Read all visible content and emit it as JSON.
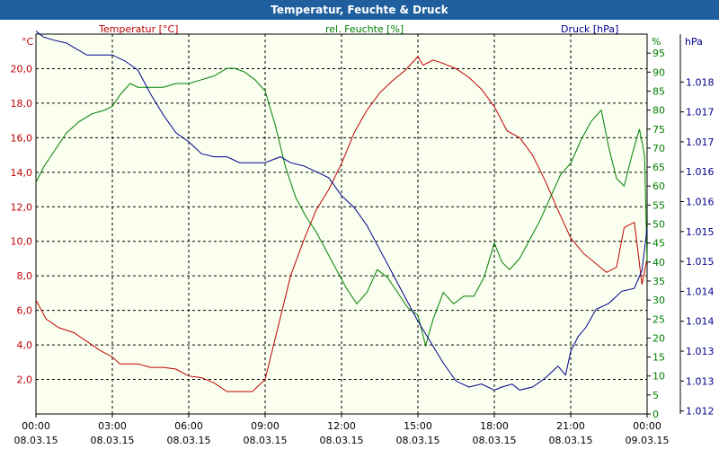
{
  "title": "Temperatur, Feuchte & Druck",
  "colors": {
    "temperature": "#c00000",
    "humidity": "#008000",
    "pressure": "#00008b",
    "grid": "#000000",
    "background": "#fafff0"
  },
  "chart_data": {
    "type": "line",
    "title": "Temperatur, Feuchte & Druck",
    "x_ticks": [
      {
        "time": "00:00",
        "date": "08.03.15"
      },
      {
        "time": "03:00",
        "date": "08.03.15"
      },
      {
        "time": "06:00",
        "date": "08.03.15"
      },
      {
        "time": "09:00",
        "date": "08.03.15"
      },
      {
        "time": "12:00",
        "date": "08.03.15"
      },
      {
        "time": "15:00",
        "date": "08.03.15"
      },
      {
        "time": "18:00",
        "date": "08.03.15"
      },
      {
        "time": "21:00",
        "date": "08.03.15"
      },
      {
        "time": "00:00",
        "date": "09.03.15"
      }
    ],
    "xlim_hours": [
      0,
      24
    ],
    "axes": {
      "temperature": {
        "label": "Temperatur [°C]",
        "unit": "°C",
        "ylim": [
          0,
          22
        ],
        "ticks": [
          "2,0",
          "4,0",
          "6,0",
          "8,0",
          "10,0",
          "12,0",
          "14,0",
          "16,0",
          "18,0",
          "20,0"
        ]
      },
      "humidity": {
        "label": "rel. Feuchte [%]",
        "unit": "%",
        "ylim": [
          0,
          100
        ],
        "ticks": [
          "0",
          "5",
          "10",
          "15",
          "20",
          "25",
          "30",
          "35",
          "40",
          "45",
          "50",
          "55",
          "60",
          "65",
          "70",
          "75",
          "80",
          "85",
          "90",
          "95"
        ]
      },
      "pressure": {
        "label": "Druck [hPa]",
        "unit": "hPa",
        "ylim": [
          1011.95,
          1018.3
        ],
        "ticks": [
          "1.012",
          "1.013",
          "1.013",
          "1.014",
          "1.014",
          "1.015",
          "1.015",
          "1.016",
          "1.016",
          "1.017",
          "1.017",
          "1.018"
        ],
        "tick_values": [
          1012.0,
          1012.5,
          1013.0,
          1013.5,
          1014.0,
          1014.5,
          1015.0,
          1015.5,
          1016.0,
          1016.5,
          1017.0,
          1017.5
        ]
      }
    },
    "series": [
      {
        "name": "Temperatur [°C]",
        "axis": "temperature",
        "x": [
          0,
          0.4,
          0.9,
          1.5,
          2,
          2.5,
          3,
          3.3,
          3.6,
          4,
          4.5,
          5,
          5.5,
          6,
          6.5,
          7,
          7.5,
          8,
          8.5,
          9,
          9.5,
          10,
          10.5,
          11,
          11.5,
          12,
          12.5,
          13,
          13.5,
          14,
          14.5,
          15,
          15.2,
          15.6,
          16,
          16.5,
          17,
          17.5,
          18,
          18.5,
          19,
          19.5,
          20,
          20.5,
          21,
          21.5,
          22,
          22.4,
          22.8,
          23.1,
          23.5,
          23.8,
          24
        ],
        "y": [
          6.6,
          5.5,
          5.0,
          4.7,
          4.2,
          3.7,
          3.3,
          2.9,
          2.9,
          2.9,
          2.7,
          2.7,
          2.6,
          2.2,
          2.1,
          1.8,
          1.3,
          1.3,
          1.3,
          2.0,
          5.0,
          8.0,
          10.0,
          11.8,
          13.0,
          14.5,
          16.3,
          17.6,
          18.6,
          19.3,
          19.9,
          20.7,
          20.2,
          20.5,
          20.3,
          20.0,
          19.5,
          18.8,
          17.8,
          16.4,
          16.0,
          15.0,
          13.5,
          11.8,
          10.2,
          9.3,
          8.7,
          8.2,
          8.5,
          10.8,
          11.1,
          7.5,
          9.0
        ]
      },
      {
        "name": "rel. Feuchte [%]",
        "axis": "humidity",
        "x": [
          0,
          0.3,
          0.7,
          1.2,
          1.7,
          2.2,
          2.7,
          3.0,
          3.3,
          3.7,
          4.0,
          4.5,
          5.0,
          5.5,
          6.0,
          6.5,
          7.0,
          7.5,
          7.8,
          8.2,
          8.6,
          9.0,
          9.4,
          9.8,
          10.2,
          10.6,
          11.0,
          11.4,
          11.8,
          12.2,
          12.6,
          13.0,
          13.4,
          13.8,
          14.2,
          14.6,
          15.0,
          15.3,
          15.6,
          16.0,
          16.4,
          16.8,
          17.2,
          17.6,
          18.0,
          18.3,
          18.6,
          19.0,
          19.4,
          19.8,
          20.2,
          20.6,
          21.0,
          21.4,
          21.8,
          22.2,
          22.5,
          22.8,
          23.1,
          23.4,
          23.7,
          23.9,
          24.0
        ],
        "y": [
          61,
          65,
          69,
          74,
          77,
          79,
          80,
          81,
          84,
          87,
          86,
          86,
          86,
          87,
          87,
          88,
          89,
          91,
          91,
          90,
          88,
          85,
          76,
          65,
          57,
          52,
          48,
          43,
          38,
          33,
          29,
          32,
          38,
          36,
          32,
          28,
          26,
          18,
          25,
          32,
          29,
          31,
          31,
          36,
          45,
          40,
          38,
          41,
          46,
          51,
          57,
          63,
          66,
          72,
          77,
          80,
          70,
          62,
          60,
          68,
          75,
          68,
          40
        ]
      },
      {
        "name": "Druck [hPa]",
        "axis": "pressure",
        "x": [
          0,
          0.3,
          0.7,
          1.2,
          1.6,
          2.0,
          2.5,
          3.0,
          3.5,
          4.0,
          4.5,
          5.0,
          5.5,
          6.0,
          6.5,
          7.0,
          7.5,
          8.0,
          8.5,
          9.0,
          9.3,
          9.6,
          10.0,
          10.5,
          11.0,
          11.5,
          12.0,
          12.5,
          13.0,
          13.5,
          14.0,
          14.5,
          15.0,
          15.5,
          16.0,
          16.5,
          17.0,
          17.5,
          18.0,
          18.3,
          18.7,
          19.0,
          19.5,
          20.0,
          20.5,
          20.8,
          21.0,
          21.3,
          21.6,
          22.0,
          22.5,
          23.0,
          23.5,
          23.8,
          24.0
        ],
        "y": [
          1018.35,
          1018.25,
          1018.2,
          1018.15,
          1018.05,
          1017.95,
          1017.95,
          1017.95,
          1017.85,
          1017.7,
          1017.3,
          1016.95,
          1016.65,
          1016.5,
          1016.3,
          1016.25,
          1016.25,
          1016.15,
          1016.15,
          1016.15,
          1016.2,
          1016.25,
          1016.15,
          1016.1,
          1016.0,
          1015.9,
          1015.6,
          1015.4,
          1015.1,
          1014.7,
          1014.3,
          1013.9,
          1013.5,
          1013.15,
          1012.8,
          1012.5,
          1012.4,
          1012.45,
          1012.35,
          1012.4,
          1012.45,
          1012.35,
          1012.4,
          1012.55,
          1012.75,
          1012.6,
          1013.0,
          1013.25,
          1013.4,
          1013.7,
          1013.8,
          1014.0,
          1014.05,
          1014.35,
          1015.05
        ]
      }
    ]
  }
}
